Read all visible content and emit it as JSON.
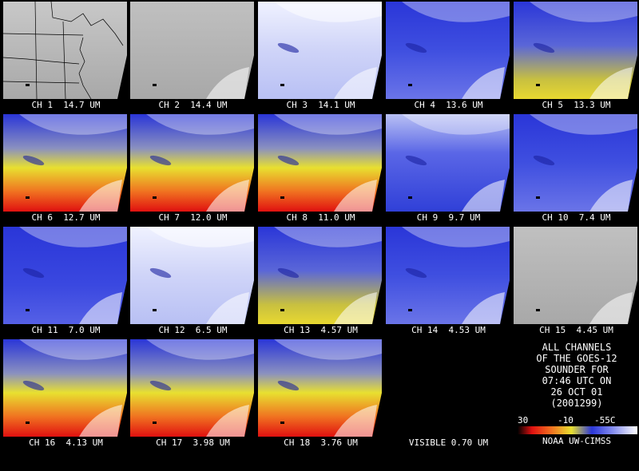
{
  "panels": [
    {
      "label": "CH 1  14.7 UM",
      "style": "map"
    },
    {
      "label": "CH 2  14.4 UM",
      "style": "gray"
    },
    {
      "label": "CH 3  14.1 UM",
      "style": "paleblue"
    },
    {
      "label": "CH 4  13.6 UM",
      "style": "blue"
    },
    {
      "label": "CH 5  13.3 UM",
      "style": "blueyellow"
    },
    {
      "label": "CH 6  12.7 UM",
      "style": "warm"
    },
    {
      "label": "CH 7  12.0 UM",
      "style": "warm"
    },
    {
      "label": "CH 8  11.0 UM",
      "style": "warm"
    },
    {
      "label": "CH 9  9.7 UM",
      "style": "blue2"
    },
    {
      "label": "CH 10  7.4 UM",
      "style": "blue"
    },
    {
      "label": "CH 11  7.0 UM",
      "style": "deepblue"
    },
    {
      "label": "CH 12  6.5 UM",
      "style": "paleblue"
    },
    {
      "label": "CH 13  4.57 UM",
      "style": "blueyellow"
    },
    {
      "label": "CH 14  4.53 UM",
      "style": "blue"
    },
    {
      "label": "CH 15  4.45 UM",
      "style": "gray"
    },
    {
      "label": "CH 16  4.13 UM",
      "style": "warm"
    },
    {
      "label": "CH 17  3.98 UM",
      "style": "warm"
    },
    {
      "label": "CH 18  3.76 UM",
      "style": "warm"
    },
    {
      "label": "VISIBLE 0.70 UM",
      "style": "black"
    }
  ],
  "info": {
    "lines": [
      "ALL CHANNELS",
      "OF THE GOES-12",
      "SOUNDER FOR",
      "07:46 UTC ON",
      "26 OCT 01",
      "(2001299)"
    ],
    "scale": [
      "30",
      "-10",
      "-55C"
    ],
    "credit": "NOAA UW-CIMSS"
  },
  "colors": {
    "gray": "#b4b4b4",
    "paleblue": "#dde0fa",
    "blue": "#3f4fe0",
    "deepblue": "#2a36d8",
    "yellow": "#e8e030",
    "orange": "#f07020",
    "red": "#e01010"
  }
}
